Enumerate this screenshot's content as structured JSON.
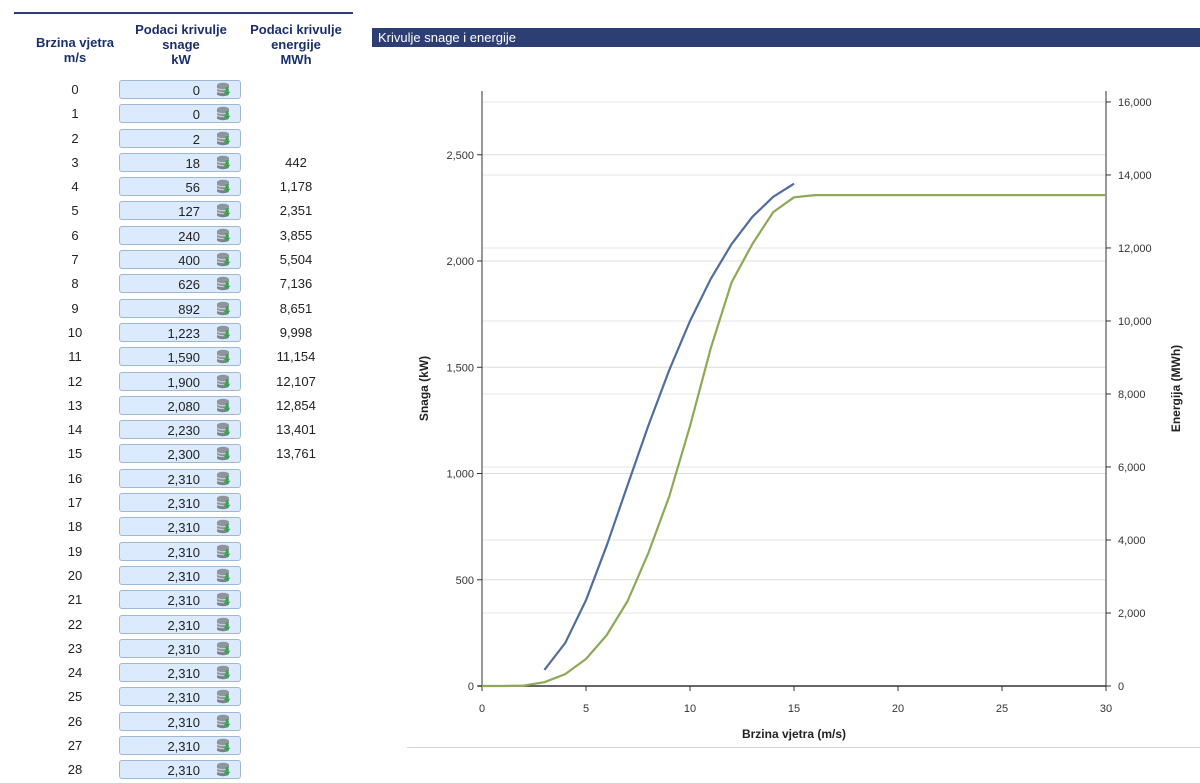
{
  "table": {
    "headers": {
      "speed": [
        "Brzina vjetra",
        "m/s"
      ],
      "power": [
        "Podaci krivulje",
        "snage",
        "kW"
      ],
      "energy": [
        "Podaci krivulje",
        "energije",
        "MWh"
      ]
    },
    "rows": [
      {
        "speed": "0",
        "power": "0",
        "energy": ""
      },
      {
        "speed": "1",
        "power": "0",
        "energy": ""
      },
      {
        "speed": "2",
        "power": "2",
        "energy": ""
      },
      {
        "speed": "3",
        "power": "18",
        "energy": "442"
      },
      {
        "speed": "4",
        "power": "56",
        "energy": "1,178"
      },
      {
        "speed": "5",
        "power": "127",
        "energy": "2,351"
      },
      {
        "speed": "6",
        "power": "240",
        "energy": "3,855"
      },
      {
        "speed": "7",
        "power": "400",
        "energy": "5,504"
      },
      {
        "speed": "8",
        "power": "626",
        "energy": "7,136"
      },
      {
        "speed": "9",
        "power": "892",
        "energy": "8,651"
      },
      {
        "speed": "10",
        "power": "1,223",
        "energy": "9,998"
      },
      {
        "speed": "11",
        "power": "1,590",
        "energy": "11,154"
      },
      {
        "speed": "12",
        "power": "1,900",
        "energy": "12,107"
      },
      {
        "speed": "13",
        "power": "2,080",
        "energy": "12,854"
      },
      {
        "speed": "14",
        "power": "2,230",
        "energy": "13,401"
      },
      {
        "speed": "15",
        "power": "2,300",
        "energy": "13,761"
      },
      {
        "speed": "16",
        "power": "2,310",
        "energy": ""
      },
      {
        "speed": "17",
        "power": "2,310",
        "energy": ""
      },
      {
        "speed": "18",
        "power": "2,310",
        "energy": ""
      },
      {
        "speed": "19",
        "power": "2,310",
        "energy": ""
      },
      {
        "speed": "20",
        "power": "2,310",
        "energy": ""
      },
      {
        "speed": "21",
        "power": "2,310",
        "energy": ""
      },
      {
        "speed": "22",
        "power": "2,310",
        "energy": ""
      },
      {
        "speed": "23",
        "power": "2,310",
        "energy": ""
      },
      {
        "speed": "24",
        "power": "2,310",
        "energy": ""
      },
      {
        "speed": "25",
        "power": "2,310",
        "energy": ""
      },
      {
        "speed": "26",
        "power": "2,310",
        "energy": ""
      },
      {
        "speed": "27",
        "power": "2,310",
        "energy": ""
      },
      {
        "speed": "28",
        "power": "2,310",
        "energy": ""
      }
    ],
    "row_icon": "database-download-icon"
  },
  "chart_panel": {
    "title": "Krivulje snage i energije"
  },
  "chart_data": {
    "type": "line",
    "title": "",
    "xlabel": "Brzina vjetra (m/s)",
    "ylabel": "Snaga (kW)",
    "y2label": "Energija  (MWh)",
    "xlim": [
      0,
      30
    ],
    "ylim": [
      0,
      2800
    ],
    "y2lim": [
      0,
      16300
    ],
    "xticks": [
      0,
      5,
      10,
      15,
      20,
      25,
      30
    ],
    "yticks": [
      0,
      500,
      1000,
      1500,
      2000,
      2500
    ],
    "ytick_labels": [
      "0",
      "500",
      "1,000",
      "1,500",
      "2,000",
      "2,500"
    ],
    "y2ticks": [
      0,
      2000,
      4000,
      6000,
      8000,
      10000,
      12000,
      14000,
      16000
    ],
    "y2tick_labels": [
      "0",
      "2,000",
      "4,000",
      "6,000",
      "8,000",
      "10,000",
      "12,000",
      "14,000",
      "16,000"
    ],
    "grid": true,
    "series": [
      {
        "axis": "right",
        "color": "#4f6e9e",
        "x": [
          3,
          4,
          5,
          6,
          7,
          8,
          9,
          10,
          11,
          12,
          13,
          14,
          15
        ],
        "values": [
          442,
          1178,
          2351,
          3855,
          5504,
          7136,
          8651,
          9998,
          11154,
          12107,
          12854,
          13401,
          13761
        ]
      },
      {
        "axis": "left",
        "color": "#8ea857",
        "x": [
          0,
          1,
          2,
          3,
          4,
          5,
          6,
          7,
          8,
          9,
          10,
          11,
          12,
          13,
          14,
          15,
          16,
          17,
          18,
          19,
          20,
          21,
          22,
          23,
          24,
          25,
          26,
          27,
          28,
          29,
          30
        ],
        "values": [
          0,
          0,
          2,
          18,
          56,
          127,
          240,
          400,
          626,
          892,
          1223,
          1590,
          1900,
          2080,
          2230,
          2300,
          2310,
          2310,
          2310,
          2310,
          2310,
          2310,
          2310,
          2310,
          2310,
          2310,
          2310,
          2310,
          2310,
          2310,
          2310
        ]
      }
    ]
  }
}
